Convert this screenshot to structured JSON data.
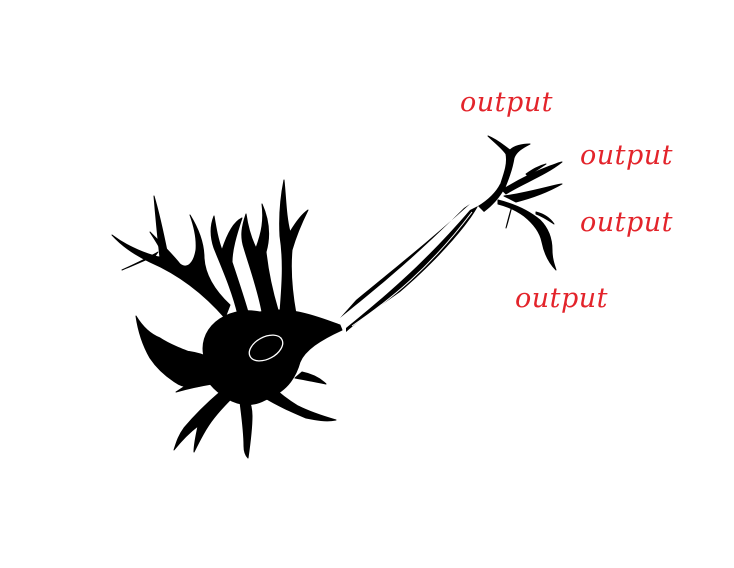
{
  "labels": [
    {
      "text": "output"
    },
    {
      "text": "output"
    },
    {
      "text": "output"
    },
    {
      "text": "output"
    }
  ],
  "colors": {
    "label": "#e3242b",
    "neuron_fill": "#000000",
    "nucleus_stroke": "#ffffff",
    "background": "#ffffff"
  }
}
